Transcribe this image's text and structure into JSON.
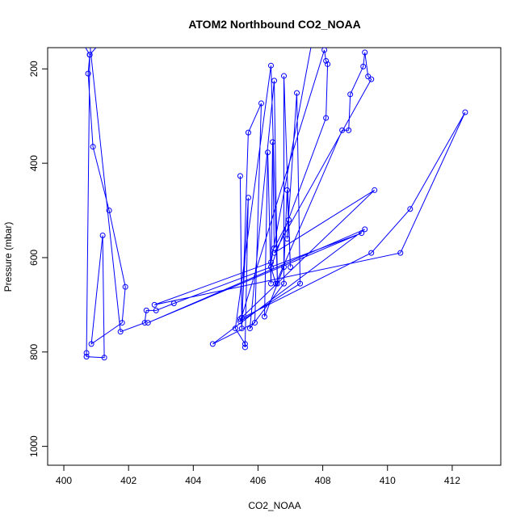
{
  "chart_data": {
    "type": "scatter",
    "title": "ATOM2 Northbound CO2_NOAA",
    "xlabel": "CO2_NOAA",
    "ylabel": "Pressure (mbar)",
    "xlim": [
      399.5,
      413.5
    ],
    "ylim": [
      1040,
      155
    ],
    "y_reversed": true,
    "x_ticks": [
      400,
      402,
      404,
      406,
      408,
      410,
      412
    ],
    "y_ticks": [
      200,
      400,
      600,
      800,
      1000
    ],
    "grid": false,
    "legend": "none",
    "color": "#0000FF",
    "series": [
      {
        "values": [
          [
            400.2,
            100
          ],
          [
            400.8,
            170
          ],
          [
            400.75,
            210
          ],
          [
            400.9,
            365
          ],
          [
            401.4,
            500
          ],
          [
            401.9,
            662
          ],
          [
            401.8,
            738
          ],
          [
            400.85,
            783
          ],
          [
            401.2,
            553
          ],
          [
            401.25,
            812
          ],
          [
            400.7,
            810
          ],
          [
            400.7,
            802
          ],
          [
            400.8,
            170
          ],
          [
            401.7,
            100
          ],
          [
            400.7,
            80
          ],
          [
            401.75,
            757
          ],
          [
            402.5,
            738
          ],
          [
            402.55,
            712
          ],
          [
            402.85,
            712
          ],
          [
            403.4,
            697
          ],
          [
            409.2,
            548
          ],
          [
            402.6,
            738
          ],
          [
            409.3,
            540
          ],
          [
            404.6,
            783
          ],
          [
            405.9,
            738
          ],
          [
            406.1,
            273
          ],
          [
            405.7,
            335
          ],
          [
            405.5,
            750
          ],
          [
            405.45,
            427
          ],
          [
            405.5,
            727
          ],
          [
            405.7,
            473
          ],
          [
            405.6,
            790
          ],
          [
            405.6,
            783
          ],
          [
            405.3,
            750
          ],
          [
            406.4,
            193
          ],
          [
            406.6,
            655
          ],
          [
            406.5,
            225
          ],
          [
            405.75,
            750
          ],
          [
            406.8,
            655
          ],
          [
            406.8,
            215
          ],
          [
            407.0,
            620
          ],
          [
            406.9,
            457
          ],
          [
            406.8,
            620
          ],
          [
            406.2,
            725
          ],
          [
            406.3,
            377
          ],
          [
            406.4,
            655
          ],
          [
            406.45,
            355
          ],
          [
            406.5,
            580
          ],
          [
            406.95,
            520
          ],
          [
            406.9,
            560
          ],
          [
            407.2,
            251
          ],
          [
            407.3,
            655
          ],
          [
            405.45,
            735
          ],
          [
            408.05,
            160
          ],
          [
            408.1,
            183
          ],
          [
            408.15,
            190
          ],
          [
            408.1,
            304
          ],
          [
            406.4,
            620
          ],
          [
            406.55,
            655
          ],
          [
            408.6,
            330
          ],
          [
            408.8,
            330
          ],
          [
            408.85,
            254
          ],
          [
            409.25,
            195
          ],
          [
            409.3,
            165
          ],
          [
            409.4,
            216
          ],
          [
            409.5,
            222
          ],
          [
            406.5,
            590
          ],
          [
            409.6,
            457
          ],
          [
            405.45,
            730
          ],
          [
            409.5,
            590
          ],
          [
            410.7,
            497
          ],
          [
            412.4,
            292
          ],
          [
            410.4,
            590
          ],
          [
            402.8,
            700
          ],
          [
            406.4,
            610
          ],
          [
            407.7,
            130
          ]
        ]
      }
    ]
  }
}
